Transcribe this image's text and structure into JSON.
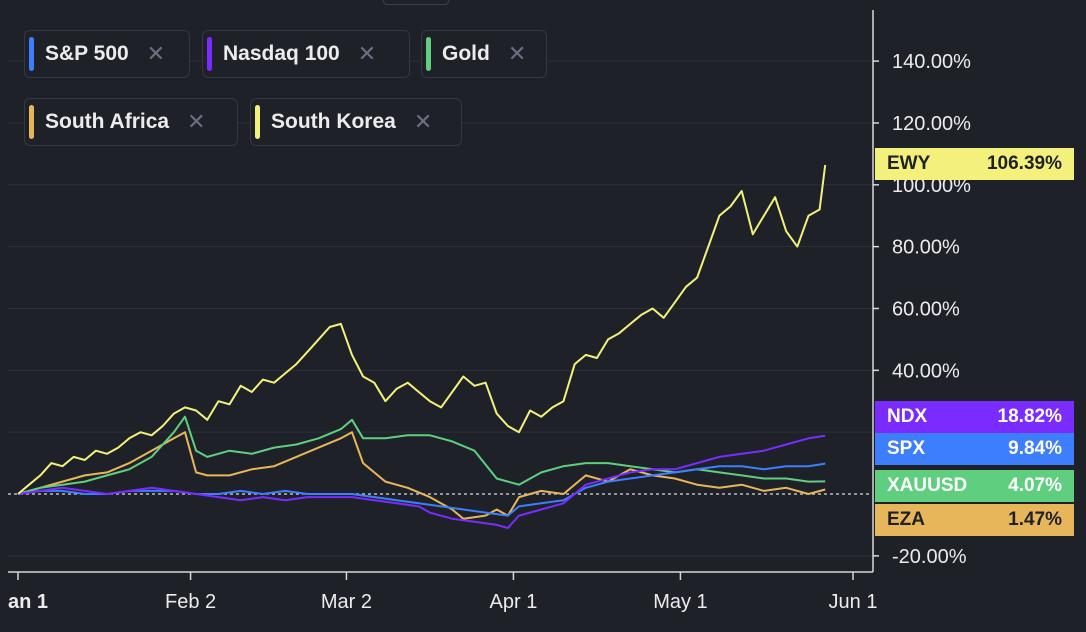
{
  "legend": [
    {
      "label": "S&P 500",
      "color": "#3d7eff"
    },
    {
      "label": "Nasdaq 100",
      "color": "#7a2cff"
    },
    {
      "label": "Gold",
      "color": "#5fcf7f"
    },
    {
      "label": "South Africa",
      "color": "#e8b65a"
    },
    {
      "label": "South Korea",
      "color": "#f4f07c"
    }
  ],
  "close_glyph": "✕",
  "badges": [
    {
      "ticker": "EWY",
      "value": "106.39%",
      "bg": "#f4f07c",
      "fg": "#1e2128"
    },
    {
      "ticker": "NDX",
      "value": "18.82%",
      "bg": "#7a2cff",
      "fg": "#ffffff"
    },
    {
      "ticker": "SPX",
      "value": "9.84%",
      "bg": "#3d7eff",
      "fg": "#ffffff"
    },
    {
      "ticker": "XAUUSD",
      "value": "4.07%",
      "bg": "#5fcf7f",
      "fg": "#ffffff"
    },
    {
      "ticker": "EZA",
      "value": "1.47%",
      "bg": "#e8b65a",
      "fg": "#1e2128"
    }
  ],
  "chart_data": {
    "type": "line",
    "y_unit": "%",
    "ylim": [
      -25,
      155
    ],
    "y_ticks": [
      "140.00%",
      "120.00%",
      "100.00%",
      "80.00%",
      "60.00%",
      "40.00%",
      "-20.00%"
    ],
    "y_tick_values": [
      140,
      120,
      100,
      80,
      60,
      40,
      -20
    ],
    "x_ticks": [
      "an 1",
      "Feb 2",
      "Mar 2",
      "Apr 1",
      "May 1",
      "Jun 1"
    ],
    "x_tick_positions": [
      0,
      31,
      59,
      89,
      119,
      150
    ],
    "x_day_range": [
      -2,
      150
    ],
    "grid": true,
    "baseline": 0,
    "series": [
      {
        "name": "South Korea",
        "ticker": "EWY",
        "color": "#f4f07c",
        "points": [
          [
            0,
            0
          ],
          [
            2,
            3
          ],
          [
            4,
            6
          ],
          [
            6,
            10
          ],
          [
            8,
            9
          ],
          [
            10,
            12
          ],
          [
            12,
            11
          ],
          [
            14,
            14
          ],
          [
            16,
            13
          ],
          [
            18,
            15
          ],
          [
            20,
            18
          ],
          [
            22,
            20
          ],
          [
            24,
            19
          ],
          [
            26,
            22
          ],
          [
            28,
            26
          ],
          [
            30,
            28
          ],
          [
            32,
            27
          ],
          [
            34,
            24
          ],
          [
            36,
            30
          ],
          [
            38,
            29
          ],
          [
            40,
            35
          ],
          [
            42,
            33
          ],
          [
            44,
            37
          ],
          [
            46,
            36
          ],
          [
            48,
            39
          ],
          [
            50,
            42
          ],
          [
            52,
            46
          ],
          [
            54,
            50
          ],
          [
            56,
            54
          ],
          [
            58,
            55
          ],
          [
            60,
            45
          ],
          [
            62,
            38
          ],
          [
            64,
            36
          ],
          [
            66,
            30
          ],
          [
            68,
            34
          ],
          [
            70,
            36
          ],
          [
            72,
            33
          ],
          [
            74,
            30
          ],
          [
            76,
            28
          ],
          [
            78,
            33
          ],
          [
            80,
            38
          ],
          [
            82,
            35
          ],
          [
            84,
            36
          ],
          [
            86,
            26
          ],
          [
            88,
            22
          ],
          [
            90,
            20
          ],
          [
            92,
            27
          ],
          [
            94,
            25
          ],
          [
            96,
            28
          ],
          [
            98,
            30
          ],
          [
            100,
            42
          ],
          [
            102,
            45
          ],
          [
            104,
            44
          ],
          [
            106,
            50
          ],
          [
            108,
            52
          ],
          [
            110,
            55
          ],
          [
            112,
            58
          ],
          [
            114,
            60
          ],
          [
            116,
            57
          ],
          [
            118,
            62
          ],
          [
            120,
            67
          ],
          [
            122,
            70
          ],
          [
            124,
            80
          ],
          [
            126,
            90
          ],
          [
            128,
            93
          ],
          [
            130,
            98
          ],
          [
            132,
            84
          ],
          [
            134,
            90
          ],
          [
            136,
            96
          ],
          [
            138,
            85
          ],
          [
            140,
            80
          ],
          [
            142,
            90
          ],
          [
            144,
            92
          ],
          [
            145,
            106.39
          ]
        ]
      },
      {
        "name": "Nasdaq 100",
        "ticker": "NDX",
        "color": "#7a2cff",
        "points": [
          [
            0,
            0
          ],
          [
            4,
            1
          ],
          [
            8,
            2
          ],
          [
            12,
            1
          ],
          [
            16,
            0
          ],
          [
            20,
            1
          ],
          [
            24,
            2
          ],
          [
            28,
            1
          ],
          [
            32,
            0
          ],
          [
            36,
            -1
          ],
          [
            40,
            -2
          ],
          [
            44,
            -1
          ],
          [
            48,
            -2
          ],
          [
            52,
            -1
          ],
          [
            56,
            -1
          ],
          [
            60,
            -1
          ],
          [
            64,
            -2
          ],
          [
            68,
            -3
          ],
          [
            72,
            -4
          ],
          [
            74,
            -6
          ],
          [
            78,
            -8
          ],
          [
            82,
            -9
          ],
          [
            86,
            -10
          ],
          [
            88,
            -11
          ],
          [
            90,
            -7
          ],
          [
            94,
            -5
          ],
          [
            98,
            -3
          ],
          [
            102,
            3
          ],
          [
            106,
            5
          ],
          [
            110,
            7
          ],
          [
            114,
            8
          ],
          [
            118,
            8
          ],
          [
            122,
            10
          ],
          [
            126,
            12
          ],
          [
            130,
            13
          ],
          [
            134,
            14
          ],
          [
            138,
            16
          ],
          [
            142,
            18
          ],
          [
            145,
            18.82
          ]
        ]
      },
      {
        "name": "S&P 500",
        "ticker": "SPX",
        "color": "#3d7eff",
        "points": [
          [
            0,
            0
          ],
          [
            4,
            1
          ],
          [
            8,
            1
          ],
          [
            12,
            0
          ],
          [
            16,
            0
          ],
          [
            20,
            1
          ],
          [
            24,
            1
          ],
          [
            28,
            1
          ],
          [
            32,
            0
          ],
          [
            36,
            0
          ],
          [
            40,
            1
          ],
          [
            44,
            0
          ],
          [
            48,
            1
          ],
          [
            52,
            0
          ],
          [
            56,
            0
          ],
          [
            60,
            0
          ],
          [
            64,
            -1
          ],
          [
            68,
            -2
          ],
          [
            72,
            -3
          ],
          [
            76,
            -4
          ],
          [
            80,
            -5
          ],
          [
            84,
            -6
          ],
          [
            88,
            -7
          ],
          [
            90,
            -4
          ],
          [
            94,
            -3
          ],
          [
            98,
            -2
          ],
          [
            102,
            2
          ],
          [
            106,
            4
          ],
          [
            110,
            5
          ],
          [
            114,
            6
          ],
          [
            118,
            7
          ],
          [
            122,
            8
          ],
          [
            126,
            9
          ],
          [
            130,
            9
          ],
          [
            134,
            8
          ],
          [
            138,
            9
          ],
          [
            142,
            9
          ],
          [
            145,
            9.84
          ]
        ]
      },
      {
        "name": "Gold",
        "ticker": "XAUUSD",
        "color": "#5fcf7f",
        "points": [
          [
            0,
            0
          ],
          [
            4,
            2
          ],
          [
            8,
            3
          ],
          [
            12,
            4
          ],
          [
            16,
            6
          ],
          [
            20,
            8
          ],
          [
            24,
            12
          ],
          [
            28,
            20
          ],
          [
            30,
            25
          ],
          [
            32,
            14
          ],
          [
            34,
            12
          ],
          [
            38,
            14
          ],
          [
            42,
            13
          ],
          [
            46,
            15
          ],
          [
            50,
            16
          ],
          [
            54,
            18
          ],
          [
            58,
            21
          ],
          [
            60,
            24
          ],
          [
            62,
            18
          ],
          [
            66,
            18
          ],
          [
            70,
            19
          ],
          [
            74,
            19
          ],
          [
            78,
            17
          ],
          [
            82,
            14
          ],
          [
            86,
            5
          ],
          [
            90,
            3
          ],
          [
            94,
            7
          ],
          [
            98,
            9
          ],
          [
            102,
            10
          ],
          [
            106,
            10
          ],
          [
            110,
            9
          ],
          [
            114,
            8
          ],
          [
            118,
            7
          ],
          [
            122,
            8
          ],
          [
            126,
            7
          ],
          [
            130,
            6
          ],
          [
            134,
            5
          ],
          [
            138,
            5
          ],
          [
            142,
            4
          ],
          [
            145,
            4.07
          ]
        ]
      },
      {
        "name": "South Africa",
        "ticker": "EZA",
        "color": "#e8b65a",
        "points": [
          [
            0,
            0
          ],
          [
            4,
            2
          ],
          [
            8,
            4
          ],
          [
            12,
            6
          ],
          [
            16,
            7
          ],
          [
            20,
            10
          ],
          [
            24,
            14
          ],
          [
            28,
            18
          ],
          [
            30,
            20
          ],
          [
            32,
            7
          ],
          [
            34,
            6
          ],
          [
            38,
            6
          ],
          [
            42,
            8
          ],
          [
            46,
            9
          ],
          [
            50,
            12
          ],
          [
            54,
            15
          ],
          [
            58,
            18
          ],
          [
            60,
            20
          ],
          [
            62,
            10
          ],
          [
            66,
            4
          ],
          [
            70,
            2
          ],
          [
            74,
            -1
          ],
          [
            78,
            -5
          ],
          [
            80,
            -8
          ],
          [
            84,
            -7
          ],
          [
            86,
            -5
          ],
          [
            88,
            -7
          ],
          [
            90,
            -1
          ],
          [
            94,
            1
          ],
          [
            98,
            0
          ],
          [
            102,
            6
          ],
          [
            106,
            4
          ],
          [
            110,
            8
          ],
          [
            114,
            6
          ],
          [
            118,
            5
          ],
          [
            122,
            3
          ],
          [
            126,
            2
          ],
          [
            130,
            3
          ],
          [
            134,
            1
          ],
          [
            138,
            2
          ],
          [
            142,
            0
          ],
          [
            145,
            1.47
          ]
        ]
      }
    ]
  }
}
